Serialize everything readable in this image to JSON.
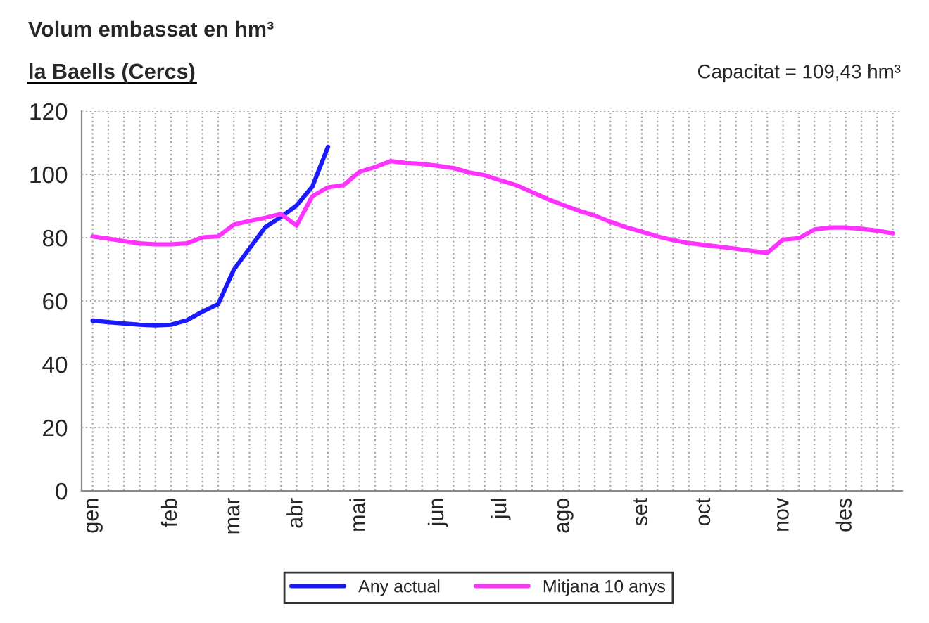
{
  "chart_data": {
    "type": "line",
    "title": "Volum embassat en hm³",
    "subtitle": "la Baells (Cercs)",
    "annotations": [
      "Capacitat = 109,43 hm³"
    ],
    "categories": [
      "gen",
      null,
      null,
      null,
      null,
      "feb",
      null,
      null,
      null,
      "mar",
      null,
      null,
      null,
      "abr",
      null,
      null,
      null,
      "mai",
      null,
      null,
      null,
      null,
      "jun",
      null,
      null,
      null,
      "jul",
      null,
      null,
      null,
      "ago",
      null,
      null,
      null,
      null,
      "set",
      null,
      null,
      null,
      "oct",
      null,
      null,
      null,
      null,
      "nov",
      null,
      null,
      null,
      "des",
      null,
      null,
      null
    ],
    "series": [
      {
        "name": "Any actual",
        "color": "#1a1aff",
        "values": [
          53.8,
          53.3,
          52.9,
          52.5,
          52.3,
          52.5,
          53.9,
          56.6,
          59.0,
          69.9,
          76.6,
          83.3,
          86.5,
          90.2,
          96.1,
          108.7,
          null,
          null,
          null,
          null,
          null,
          null,
          null,
          null,
          null,
          null,
          null,
          null,
          null,
          null,
          null,
          null,
          null,
          null,
          null,
          null,
          null,
          null,
          null,
          null,
          null,
          null,
          null,
          null,
          null,
          null,
          null,
          null,
          null,
          null,
          null,
          null
        ]
      },
      {
        "name": "Mitjana 10 anys",
        "color": "#ff33ff",
        "values": [
          80.4,
          79.7,
          78.9,
          78.2,
          77.9,
          77.9,
          78.2,
          80.1,
          80.4,
          84.1,
          85.3,
          86.3,
          87.5,
          83.8,
          93.1,
          95.9,
          96.6,
          100.8,
          102.3,
          104.2,
          103.6,
          103.3,
          102.7,
          102.0,
          100.6,
          99.7,
          98.1,
          96.6,
          94.4,
          92.2,
          90.3,
          88.5,
          87.0,
          85.0,
          83.3,
          81.9,
          80.4,
          79.2,
          78.3,
          77.7,
          77.1,
          76.5,
          75.8,
          75.2,
          79.4,
          79.8,
          82.6,
          83.2,
          83.2,
          82.8,
          82.2,
          81.4
        ]
      }
    ],
    "ylim": [
      0,
      120
    ],
    "yticks": [
      0,
      20,
      40,
      60,
      80,
      100,
      120
    ],
    "grid": true,
    "legend": "bottom",
    "line_style": "solid"
  }
}
